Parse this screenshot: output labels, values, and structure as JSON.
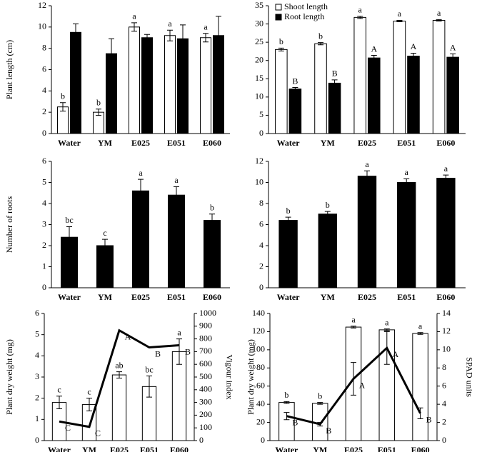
{
  "chart_data": [
    {
      "type": "bar",
      "ylabel": "Plant length (cm)",
      "categories": [
        "Water",
        "YM",
        "E025",
        "E051",
        "E060"
      ],
      "ylim": [
        0,
        12
      ],
      "yticks": [
        0,
        2,
        4,
        6,
        8,
        10,
        12
      ],
      "series": [
        {
          "color": "#ffffff",
          "values": [
            2.5,
            2.0,
            10.0,
            9.2,
            9.0
          ],
          "errors": [
            0.4,
            0.3,
            0.4,
            0.5,
            0.4
          ],
          "letters": [
            "b",
            "b",
            "a",
            "a",
            "a"
          ]
        },
        {
          "color": "#000000",
          "values": [
            9.5,
            7.5,
            9.0,
            8.9,
            9.2
          ],
          "errors": [
            0.8,
            1.4,
            0.3,
            1.3,
            1.8
          ]
        }
      ]
    },
    {
      "type": "bar",
      "categories": [
        "Water",
        "YM",
        "E025",
        "E051",
        "E060"
      ],
      "ylim": [
        0,
        35
      ],
      "yticks": [
        0,
        5,
        10,
        15,
        20,
        25,
        30,
        35
      ],
      "legend": "upper left",
      "series": [
        {
          "name": "Shoot length",
          "color": "#ffffff",
          "values": [
            23.0,
            24.6,
            31.8,
            30.8,
            31.0
          ],
          "errors": [
            0.4,
            0.3,
            0.3,
            0.2,
            0.2
          ],
          "letters": [
            "b",
            "b",
            "a",
            "a",
            "a"
          ]
        },
        {
          "name": "Root length",
          "color": "#000000",
          "values": [
            12.2,
            13.8,
            20.7,
            21.2,
            20.9
          ],
          "errors": [
            0.4,
            0.9,
            0.7,
            0.8,
            0.9
          ],
          "letters": [
            "B",
            "B",
            "A",
            "A",
            "A"
          ]
        }
      ]
    },
    {
      "type": "bar",
      "ylabel": "Number of roots",
      "categories": [
        "Water",
        "YM",
        "E025",
        "E051",
        "E060"
      ],
      "ylim": [
        0,
        6
      ],
      "yticks": [
        0,
        1,
        2,
        3,
        4,
        5,
        6
      ],
      "series": [
        {
          "color": "#000000",
          "values": [
            2.4,
            2.0,
            4.6,
            4.4,
            3.2
          ],
          "errors": [
            0.5,
            0.3,
            0.55,
            0.4,
            0.3
          ],
          "letters": [
            "bc",
            "c",
            "a",
            "a",
            "b"
          ]
        }
      ]
    },
    {
      "type": "bar",
      "categories": [
        "Water",
        "YM",
        "E025",
        "E051",
        "E060"
      ],
      "ylim": [
        0,
        12
      ],
      "yticks": [
        0,
        2,
        4,
        6,
        8,
        10,
        12
      ],
      "series": [
        {
          "color": "#000000",
          "values": [
            6.4,
            7.0,
            10.6,
            10.0,
            10.4
          ],
          "errors": [
            0.3,
            0.25,
            0.5,
            0.35,
            0.3
          ],
          "letters": [
            "b",
            "b",
            "a",
            "a",
            "a"
          ]
        }
      ]
    },
    {
      "type": "combo",
      "ylabel": "Plant dry weight (mg)",
      "y2label": "Vigour index",
      "categories": [
        "Water",
        "YM",
        "E025",
        "E051",
        "E060"
      ],
      "ylim": [
        0,
        6
      ],
      "yticks": [
        0,
        1,
        2,
        3,
        4,
        5,
        6
      ],
      "y2lim": [
        0,
        1000
      ],
      "y2ticks": [
        0,
        100,
        200,
        300,
        400,
        500,
        600,
        700,
        800,
        900,
        1000
      ],
      "series": [
        {
          "color": "#ffffff",
          "values": [
            1.8,
            1.7,
            3.1,
            2.55,
            4.2
          ],
          "errors": [
            0.3,
            0.3,
            0.15,
            0.5,
            0.6
          ],
          "letters": [
            "c",
            "c",
            "ab",
            "bc",
            "a"
          ]
        },
        {
          "axis": "y2",
          "color": "#000000",
          "values": [
            150,
            108,
            867,
            733,
            750
          ],
          "letters": [
            "C",
            "C",
            "A",
            "B",
            "B"
          ]
        }
      ]
    },
    {
      "type": "combo",
      "ylabel": "Plant dry weight (mg)",
      "y2label": "SPAD units",
      "categories": [
        "Water",
        "YM",
        "E025",
        "E051",
        "E060"
      ],
      "ylim": [
        0,
        140
      ],
      "yticks": [
        0,
        20,
        40,
        60,
        80,
        100,
        120,
        140
      ],
      "y2lim": [
        0,
        14
      ],
      "y2ticks": [
        0,
        2,
        4,
        6,
        8,
        10,
        12,
        14
      ],
      "series": [
        {
          "color": "#ffffff",
          "values": [
            42,
            41,
            125,
            122,
            118
          ],
          "errors": [
            1,
            1,
            1,
            1,
            1
          ],
          "letters": [
            "b",
            "b",
            "a",
            "a",
            "a"
          ]
        },
        {
          "axis": "y2",
          "color": "#000000",
          "values": [
            2.7,
            1.8,
            6.8,
            10.2,
            3.0
          ],
          "errors": [
            0.4,
            0.2,
            1.8,
            1.8,
            0.6
          ],
          "letters": [
            "B",
            "B",
            "A",
            "A",
            "B"
          ]
        }
      ]
    }
  ]
}
